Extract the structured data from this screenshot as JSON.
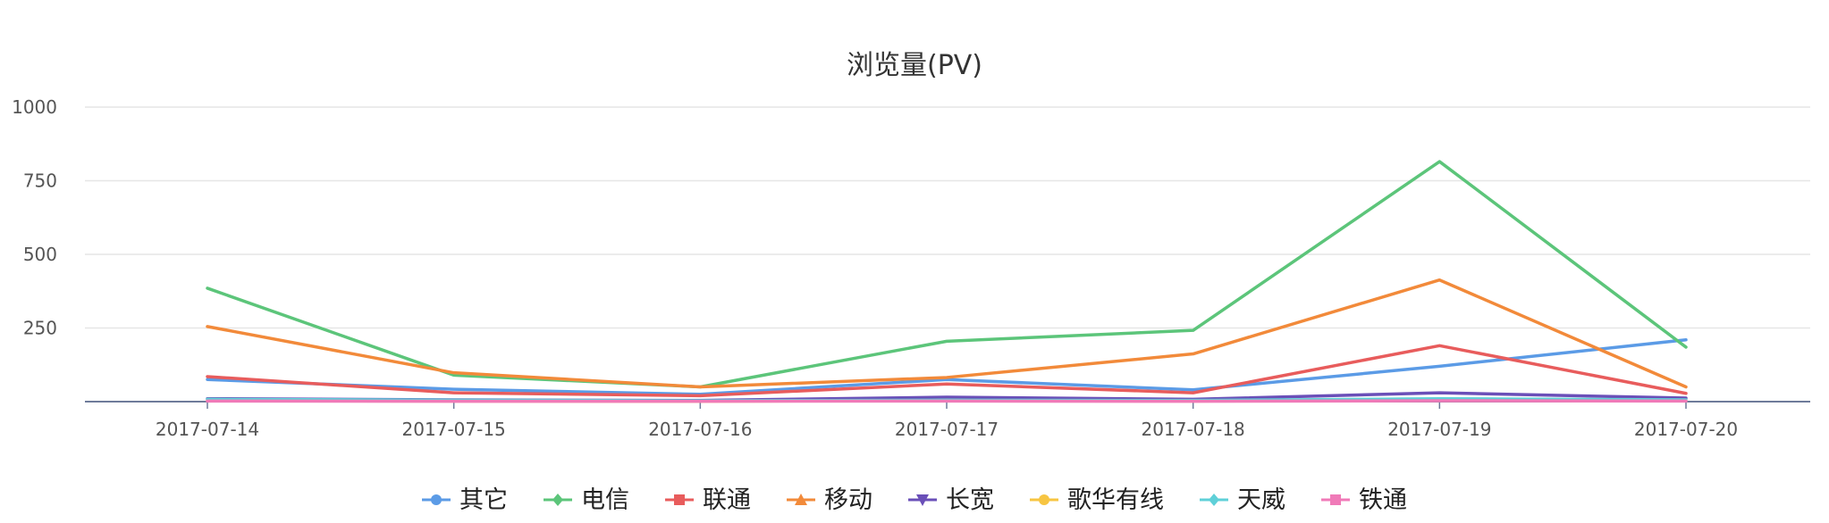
{
  "chart_data": {
    "type": "line",
    "title": "浏览量(PV)",
    "xlabel": "",
    "ylabel": "",
    "categories": [
      "2017-07-14",
      "2017-07-15",
      "2017-07-16",
      "2017-07-17",
      "2017-07-18",
      "2017-07-19",
      "2017-07-20"
    ],
    "yticks": [
      250,
      500,
      750,
      1000
    ],
    "ylim": [
      0,
      1000
    ],
    "grid": true,
    "legend_position": "bottom",
    "series": [
      {
        "name": "其它",
        "color": "#5b9be6",
        "marker": "circle",
        "values": [
          75,
          42,
          25,
          75,
          40,
          120,
          210
        ]
      },
      {
        "name": "电信",
        "color": "#5cc57a",
        "marker": "diamond",
        "values": [
          385,
          90,
          50,
          205,
          242,
          815,
          185
        ]
      },
      {
        "name": "联通",
        "color": "#e85c5c",
        "marker": "square",
        "values": [
          85,
          30,
          20,
          60,
          30,
          190,
          28
        ]
      },
      {
        "name": "移动",
        "color": "#f28a3a",
        "marker": "triangle",
        "values": [
          255,
          98,
          50,
          82,
          162,
          413,
          50
        ]
      },
      {
        "name": "长宽",
        "color": "#6a4fb8",
        "marker": "triangle-down",
        "values": [
          10,
          6,
          4,
          15,
          8,
          30,
          12
        ]
      },
      {
        "name": "歌华有线",
        "color": "#f7c542",
        "marker": "circle",
        "values": [
          3,
          2,
          1,
          4,
          2,
          6,
          3
        ]
      },
      {
        "name": "天威",
        "color": "#5fd0d8",
        "marker": "diamond",
        "values": [
          8,
          5,
          3,
          5,
          4,
          10,
          6
        ]
      },
      {
        "name": "铁通",
        "color": "#f07ab8",
        "marker": "square",
        "values": [
          2,
          1,
          1,
          2,
          1,
          3,
          2
        ]
      }
    ]
  }
}
